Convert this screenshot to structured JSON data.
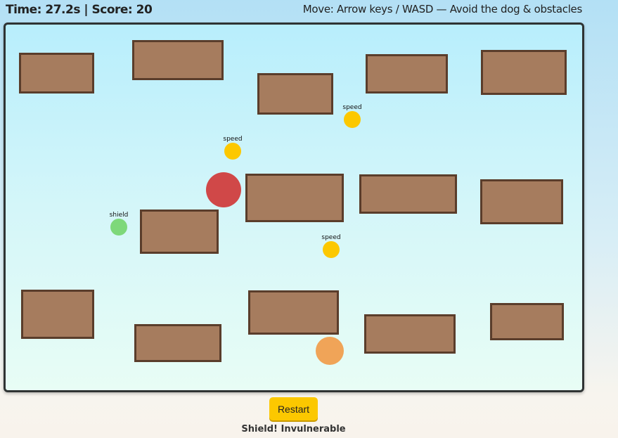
{
  "hud": {
    "time_score": "Time: 27.2s | Score: 20",
    "instructions": "Move: Arrow keys / WASD — Avoid the dog & obstacles"
  },
  "game": {
    "obstacle_color": "#a67c5e",
    "obstacle_border": "#5a3d2b",
    "dog_color": "#d04848",
    "player_color": "#f0a458",
    "powerups": [
      {
        "type": "speed",
        "label": "speed",
        "color": "#fcc800"
      },
      {
        "type": "speed",
        "label": "speed",
        "color": "#fcc800"
      },
      {
        "type": "speed",
        "label": "speed",
        "color": "#fcc800"
      },
      {
        "type": "shield",
        "label": "shield",
        "color": "#7ed87a"
      }
    ]
  },
  "controls": {
    "restart_label": "Restart"
  },
  "status": {
    "message": "Shield! Invulnerable"
  }
}
